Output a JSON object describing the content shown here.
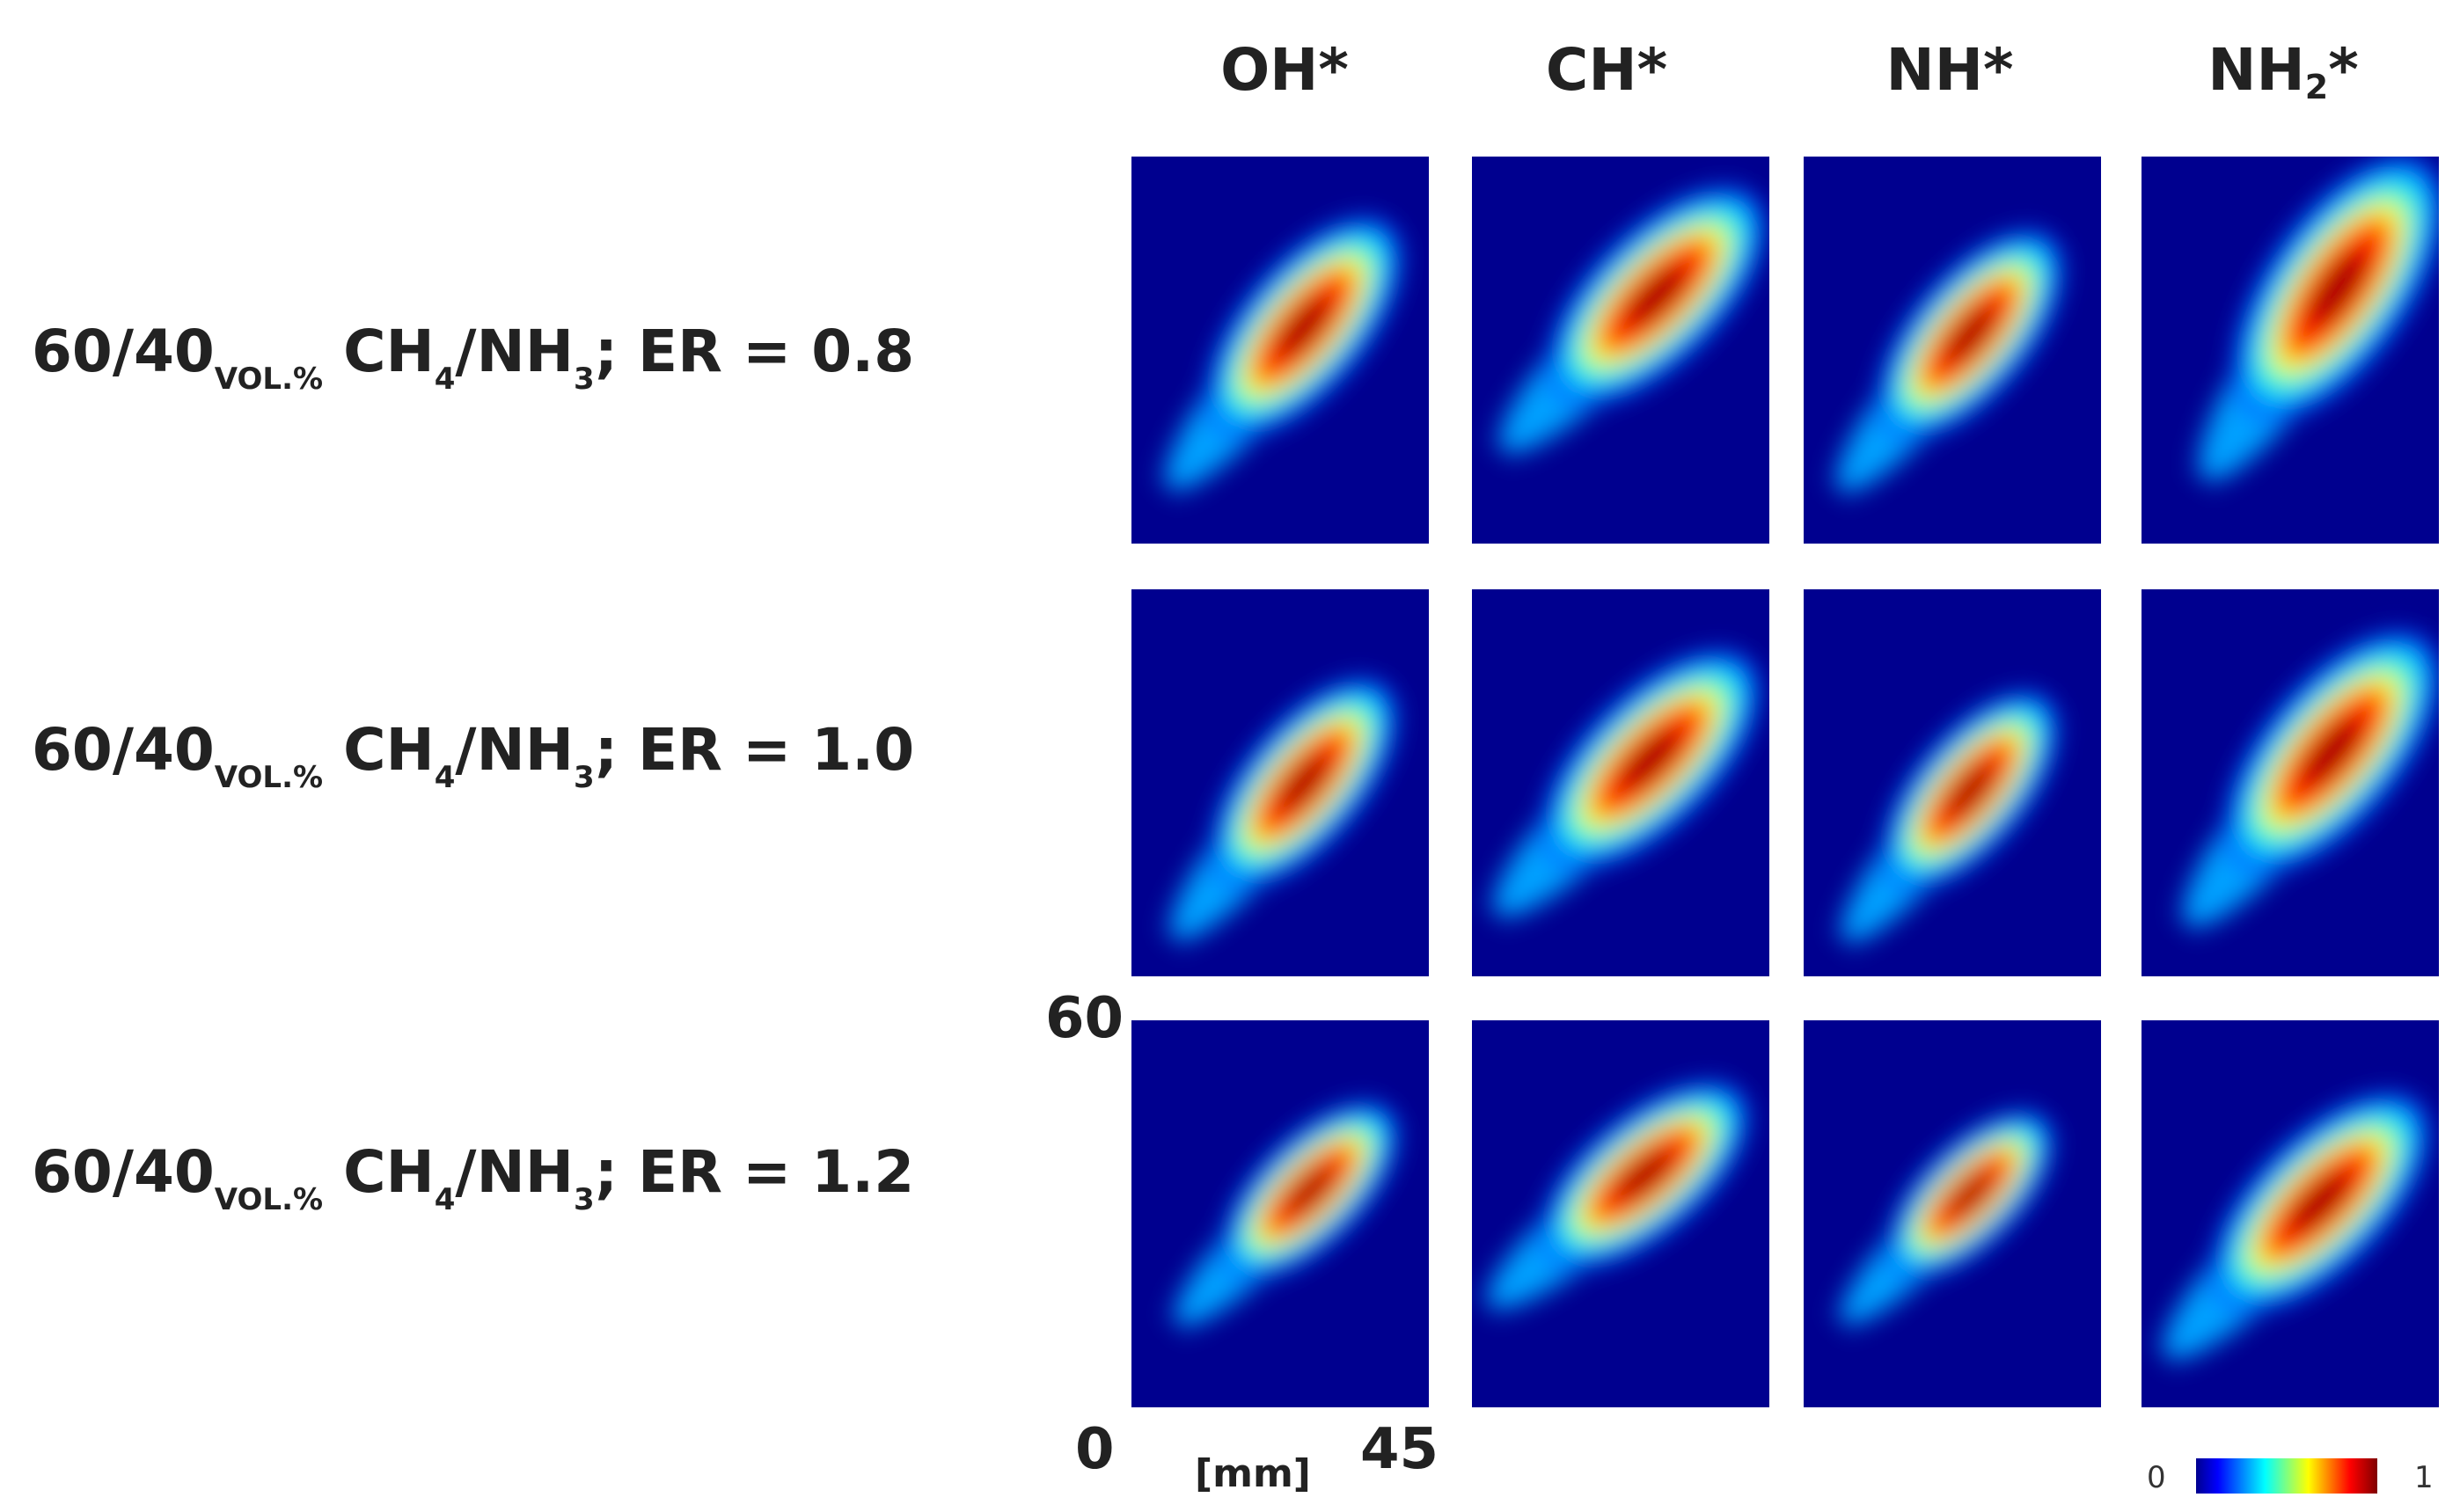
{
  "columns": [
    {
      "base": "OH*",
      "sub": ""
    },
    {
      "base": "CH*",
      "sub": ""
    },
    {
      "base": "NH*",
      "sub": ""
    },
    {
      "base": "NH",
      "sub": "2",
      "tail": "*"
    }
  ],
  "rows": [
    {
      "ratio": "60/40",
      "unit": "VOL.%",
      "fuel1": "CH",
      "fuel1_sub": "4",
      "sep": "/",
      "fuel2": "NH",
      "fuel2_sub": "3",
      "er_text": "; ER = 0.8"
    },
    {
      "ratio": "60/40",
      "unit": "VOL.%",
      "fuel1": "CH",
      "fuel1_sub": "4",
      "sep": "/",
      "fuel2": "NH",
      "fuel2_sub": "3",
      "er_text": "; ER = 1.0"
    },
    {
      "ratio": "60/40",
      "unit": "VOL.%",
      "fuel1": "CH",
      "fuel1_sub": "4",
      "sep": "/",
      "fuel2": "NH",
      "fuel2_sub": "3",
      "er_text": "; ER = 1.2"
    }
  ],
  "axes": {
    "y_max_label": "60",
    "x_min_label": "0",
    "x_max_label": "45",
    "unit_label": "[mm]"
  },
  "colorbar": {
    "min_label": "0",
    "max_label": "1",
    "colormap": "jet",
    "stops": [
      "#00008f",
      "#0000ff",
      "#00ffff",
      "#ffff00",
      "#ff0000",
      "#800000"
    ]
  }
}
